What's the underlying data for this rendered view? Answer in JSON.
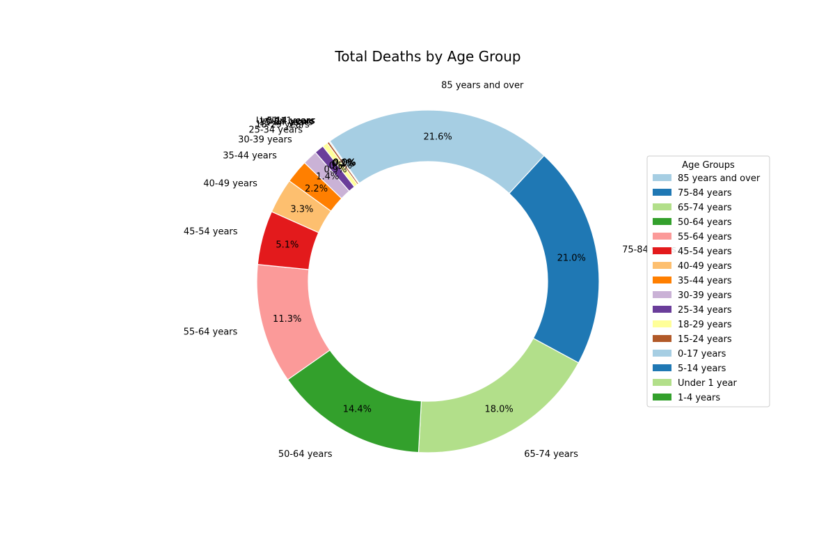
{
  "chart_data": {
    "type": "pie",
    "variant": "donut",
    "title": "Total Deaths by Age Group",
    "legend_title": "Age Groups",
    "legend_position": "right",
    "start_angle_deg": 125,
    "direction": "clockwise",
    "slices": [
      {
        "label": "85 years and over",
        "percent": 21.6,
        "pct_label": "21.6%",
        "color": "#a6cee3"
      },
      {
        "label": "75-84 years",
        "percent": 21.0,
        "pct_label": "21.0%",
        "color": "#1f78b4"
      },
      {
        "label": "65-74 years",
        "percent": 18.0,
        "pct_label": "18.0%",
        "color": "#b2df8a"
      },
      {
        "label": "50-64 years",
        "percent": 14.4,
        "pct_label": "14.4%",
        "color": "#33a02c"
      },
      {
        "label": "55-64 years",
        "percent": 11.3,
        "pct_label": "11.3%",
        "color": "#fb9a99"
      },
      {
        "label": "45-54 years",
        "percent": 5.1,
        "pct_label": "5.1%",
        "color": "#e31a1c"
      },
      {
        "label": "40-49 years",
        "percent": 3.3,
        "pct_label": "3.3%",
        "color": "#fdbf6f"
      },
      {
        "label": "35-44 years",
        "percent": 2.2,
        "pct_label": "2.2%",
        "color": "#ff7f00"
      },
      {
        "label": "30-39 years",
        "percent": 1.4,
        "pct_label": "1.4%",
        "color": "#cab2d6"
      },
      {
        "label": "25-34 years",
        "percent": 0.9,
        "pct_label": "0.9%",
        "color": "#6a3d9a"
      },
      {
        "label": "18-29 years",
        "percent": 0.5,
        "pct_label": "0.5%",
        "color": "#ffff99"
      },
      {
        "label": "15-24 years",
        "percent": 0.2,
        "pct_label": "0.2%",
        "color": "#b15928"
      },
      {
        "label": "0-17 years",
        "percent": 0.1,
        "pct_label": "0.1%",
        "color": "#a6cee3"
      },
      {
        "label": "5-14 years",
        "percent": 0.0,
        "pct_label": "0.0%",
        "color": "#1f78b4"
      },
      {
        "label": "Under 1 year",
        "percent": 0.0,
        "pct_label": "0.0%",
        "color": "#b2df8a"
      },
      {
        "label": "1-4 years",
        "percent": 0.0,
        "pct_label": "0.0%",
        "color": "#33a02c"
      }
    ]
  }
}
